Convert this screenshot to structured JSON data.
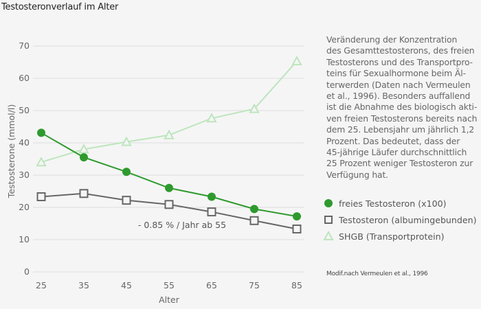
{
  "title": "Testosteronverlauf im Alter",
  "description": "Veränderung der Konzentration des Gesamttestosterons, des freien Testosterons und des Transportproteins für Sexualhormone beim Älterwerden (Daten nach Vermeulen et al., 1996). Besonders auffallend ist die Abnahme des biologisch aktiven freien Testosterons bereits nach dem 25. Lebensjahr um jährlich 1,2 Prozent. Das bedeutet, dass der 45-jährige Läufer durchschnittlich 25 Prozent weniger Testosteron zur Verfügung hat.",
  "description_lines": [
    "Veränderung der Konzentration",
    "des Gesamttestosterons, des freien",
    "Testosterons und des Transportpro-",
    "teins für Sexualhormone beim Äl-",
    "terwerden (Daten nach Vermeulen",
    "et al., 1996). Besonders auffallend",
    "ist die Abnahme des biologisch akti-",
    "ven freien Testosterons bereits nach",
    "dem 25. Lebensjahr um jährlich 1,2",
    "Prozent. Das bedeutet, dass der",
    "45-jährige Läufer durchschnittlich",
    "25 Prozent weniger Testosteron zur",
    "Verfügung hat."
  ],
  "source": "Modif.nach Vermeulen et al., 1996",
  "colors": {
    "free": "#2e9a2e",
    "albumin": "#666666",
    "shgb": "#bde5bd",
    "grid": "#dddddd"
  },
  "chart_data": {
    "type": "line",
    "title": "Testosteronverlauf im Alter",
    "xlabel": "Alter",
    "ylabel": "Testosterone (mmol/l)",
    "x": [
      25,
      35,
      45,
      55,
      65,
      75,
      85
    ],
    "xticks": [
      "25",
      "35",
      "45",
      "55",
      "65",
      "75",
      "85"
    ],
    "yticks": [
      "0",
      "10",
      "20",
      "30",
      "40",
      "50",
      "60",
      "70"
    ],
    "ylim": [
      0,
      70
    ],
    "grid": true,
    "legend_position": "right",
    "series": [
      {
        "name": "freies Testosteron (x100)",
        "marker": "circle",
        "values": [
          43.1,
          35.5,
          31.0,
          26.0,
          23.3,
          19.5,
          17.2
        ]
      },
      {
        "name": "Testosteron (albumingebunden)",
        "marker": "square",
        "values": [
          23.3,
          24.3,
          22.2,
          20.9,
          18.6,
          15.9,
          13.3
        ]
      },
      {
        "name": "SHGB (Transportprotein)",
        "marker": "triangle",
        "values": [
          34.0,
          38.0,
          40.3,
          42.4,
          47.6,
          50.5,
          65.3
        ]
      }
    ],
    "annotations": [
      {
        "text": "- 0.85 % / Jahr ab 55",
        "x": 55,
        "y": 14.5
      }
    ]
  }
}
